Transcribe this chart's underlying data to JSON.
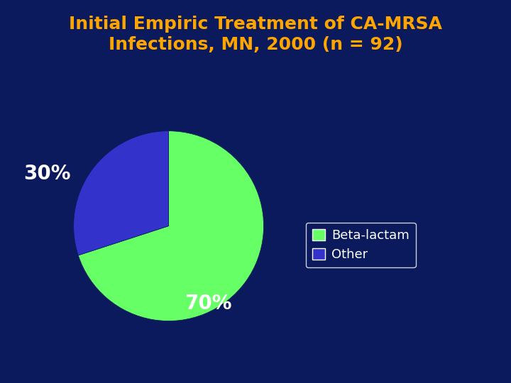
{
  "title_line1": "Initial Empiric Treatment of CA-MRSA",
  "title_line2": "Infections, MN, 2000 (n = 92)",
  "title_color": "#FFA500",
  "background_color": "#0A1A5C",
  "slices": [
    70,
    30
  ],
  "labels": [
    "Beta-lactam",
    "Other"
  ],
  "colors": [
    "#66FF66",
    "#3333CC"
  ],
  "pct_labels": [
    "70%",
    "30%"
  ],
  "pct_colors": [
    "white",
    "white"
  ],
  "pct_fontsizes": [
    20,
    20
  ],
  "legend_labels": [
    "Beta-lactam",
    "Other"
  ],
  "legend_colors": [
    "#66FF66",
    "#3333CC"
  ],
  "legend_fontsize": 13,
  "legend_text_color": "white",
  "legend_bg_color": "#0A1A5C",
  "legend_edge_color": "white",
  "startangle": 90,
  "title_fontsize": 18
}
